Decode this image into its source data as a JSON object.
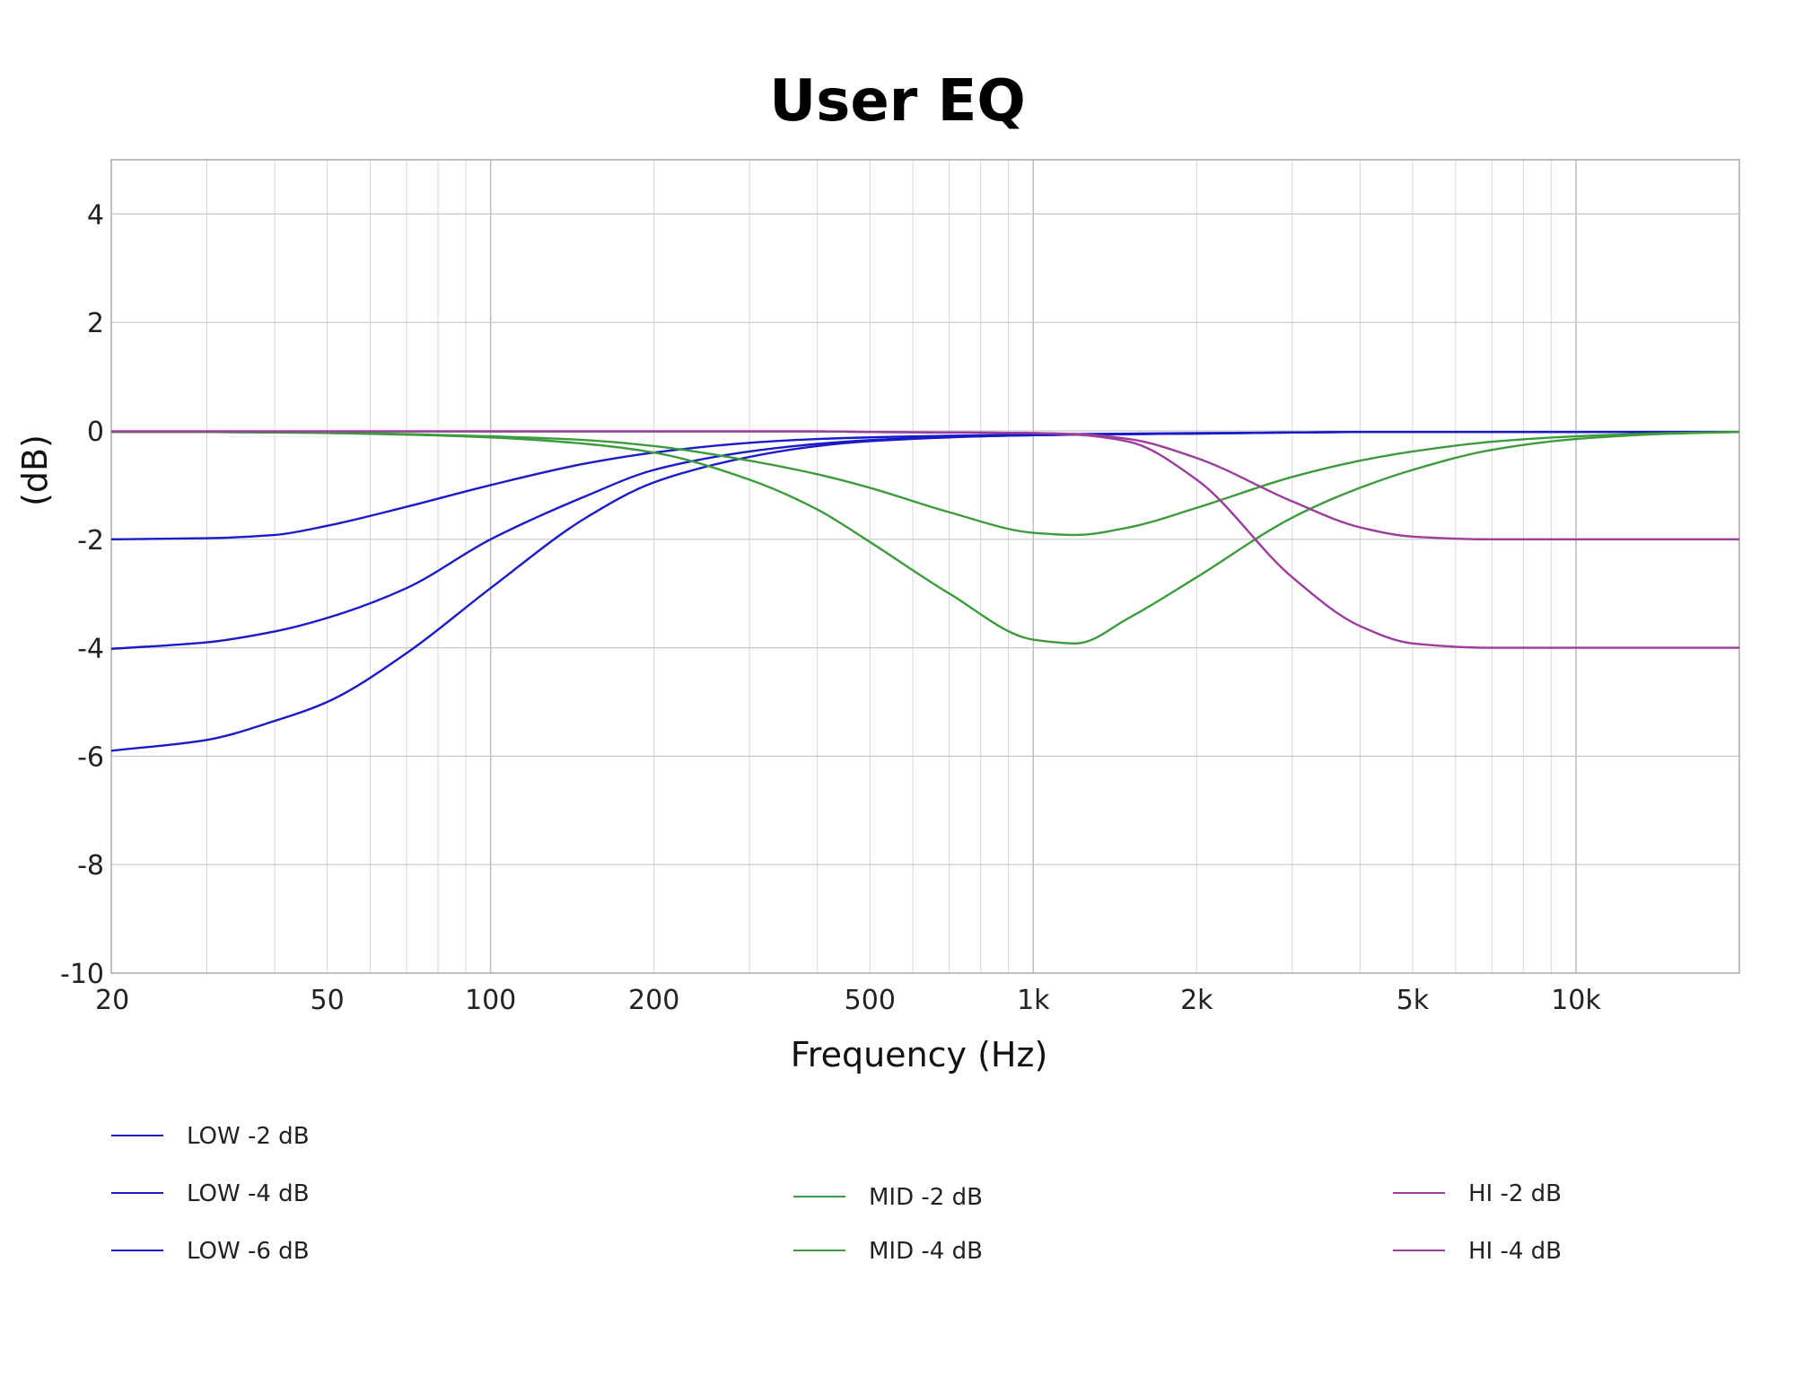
{
  "chart_data": {
    "type": "line",
    "title": "User EQ",
    "xlabel": "Frequency (Hz)",
    "ylabel": "(dB)",
    "xscale": "log",
    "xlim": [
      20,
      20000
    ],
    "ylim": [
      -10,
      5
    ],
    "grid": true,
    "x_ticks": [
      20,
      50,
      100,
      200,
      500,
      1000,
      2000,
      5000,
      10000
    ],
    "x_tick_labels": [
      "20",
      "50",
      "100",
      "200",
      "500",
      "1k",
      "2k",
      "5k",
      "10k"
    ],
    "y_ticks": [
      4,
      2,
      0,
      -2,
      -4,
      -6,
      -8,
      -10
    ],
    "y_tick_labels": [
      "4",
      "2",
      "0",
      "-2",
      "-4",
      "-6",
      "-8",
      "-10"
    ],
    "x": [
      20,
      30,
      40,
      50,
      70,
      100,
      150,
      200,
      300,
      400,
      500,
      700,
      1000,
      1200,
      1500,
      2000,
      3000,
      4000,
      5000,
      7000,
      10000,
      15000,
      20000
    ],
    "series": [
      {
        "name": "LOW -2 dB",
        "color": "#1a1ac8",
        "values": [
          -2.0,
          -1.98,
          -1.92,
          -1.75,
          -1.4,
          -1.0,
          -0.6,
          -0.4,
          -0.22,
          -0.15,
          -0.12,
          -0.09,
          -0.07,
          -0.06,
          -0.05,
          -0.04,
          -0.03,
          -0.02,
          -0.02,
          -0.02,
          -0.02,
          -0.02,
          -0.02
        ]
      },
      {
        "name": "LOW -4 dB",
        "color": "#1a1ac8",
        "values": [
          -4.02,
          -3.9,
          -3.7,
          -3.45,
          -2.9,
          -2.0,
          -1.2,
          -0.72,
          -0.38,
          -0.24,
          -0.17,
          -0.11,
          -0.08,
          -0.07,
          -0.06,
          -0.05,
          -0.03,
          -0.02,
          -0.02,
          -0.02,
          -0.02,
          -0.02,
          -0.02
        ]
      },
      {
        "name": "LOW -6 dB",
        "color": "#1a1ac8",
        "values": [
          -5.9,
          -5.7,
          -5.35,
          -5.0,
          -4.1,
          -2.9,
          -1.6,
          -0.95,
          -0.48,
          -0.28,
          -0.19,
          -0.12,
          -0.08,
          -0.07,
          -0.06,
          -0.05,
          -0.03,
          -0.02,
          -0.02,
          -0.02,
          -0.02,
          -0.02,
          -0.02
        ]
      },
      {
        "name": "MID -2 dB",
        "color": "#3c9c3c",
        "values": [
          -0.02,
          -0.02,
          -0.03,
          -0.03,
          -0.06,
          -0.1,
          -0.17,
          -0.28,
          -0.55,
          -0.8,
          -1.05,
          -1.5,
          -1.88,
          -1.92,
          -1.78,
          -1.42,
          -0.85,
          -0.55,
          -0.38,
          -0.2,
          -0.1,
          -0.04,
          -0.02
        ]
      },
      {
        "name": "MID -4 dB",
        "color": "#3c9c3c",
        "values": [
          -0.02,
          -0.02,
          -0.03,
          -0.04,
          -0.07,
          -0.12,
          -0.24,
          -0.4,
          -0.9,
          -1.45,
          -2.05,
          -3.0,
          -3.85,
          -3.92,
          -3.45,
          -2.7,
          -1.6,
          -1.05,
          -0.72,
          -0.35,
          -0.15,
          -0.05,
          -0.02
        ]
      },
      {
        "name": "HI -2 dB",
        "color": "#9c3c9c",
        "values": [
          -0.01,
          -0.01,
          -0.01,
          -0.01,
          -0.01,
          -0.01,
          -0.01,
          -0.01,
          -0.01,
          -0.01,
          -0.02,
          -0.03,
          -0.04,
          -0.06,
          -0.15,
          -0.5,
          -1.3,
          -1.78,
          -1.95,
          -2.0,
          -2.0,
          -2.0,
          -2.0
        ]
      },
      {
        "name": "HI -4 dB",
        "color": "#9c3c9c",
        "values": [
          -0.01,
          -0.01,
          -0.01,
          -0.01,
          -0.01,
          -0.01,
          -0.01,
          -0.01,
          -0.01,
          -0.01,
          -0.02,
          -0.03,
          -0.04,
          -0.07,
          -0.2,
          -0.9,
          -2.7,
          -3.6,
          -3.92,
          -4.0,
          -4.0,
          -4.0,
          -4.0
        ]
      }
    ],
    "legend": [
      {
        "label": "LOW -2 dB",
        "color": "#1a1ac8"
      },
      {
        "label": "LOW -4 dB",
        "color": "#1a1ac8"
      },
      {
        "label": "LOW -6 dB",
        "color": "#1a1ac8"
      },
      {
        "label": "MID -2 dB",
        "color": "#3c9c3c"
      },
      {
        "label": "MID -4 dB",
        "color": "#3c9c3c"
      },
      {
        "label": "HI -2 dB",
        "color": "#9c3c9c"
      },
      {
        "label": "HI -4 dB",
        "color": "#9c3c9c"
      }
    ],
    "legend_position": "bottom"
  }
}
